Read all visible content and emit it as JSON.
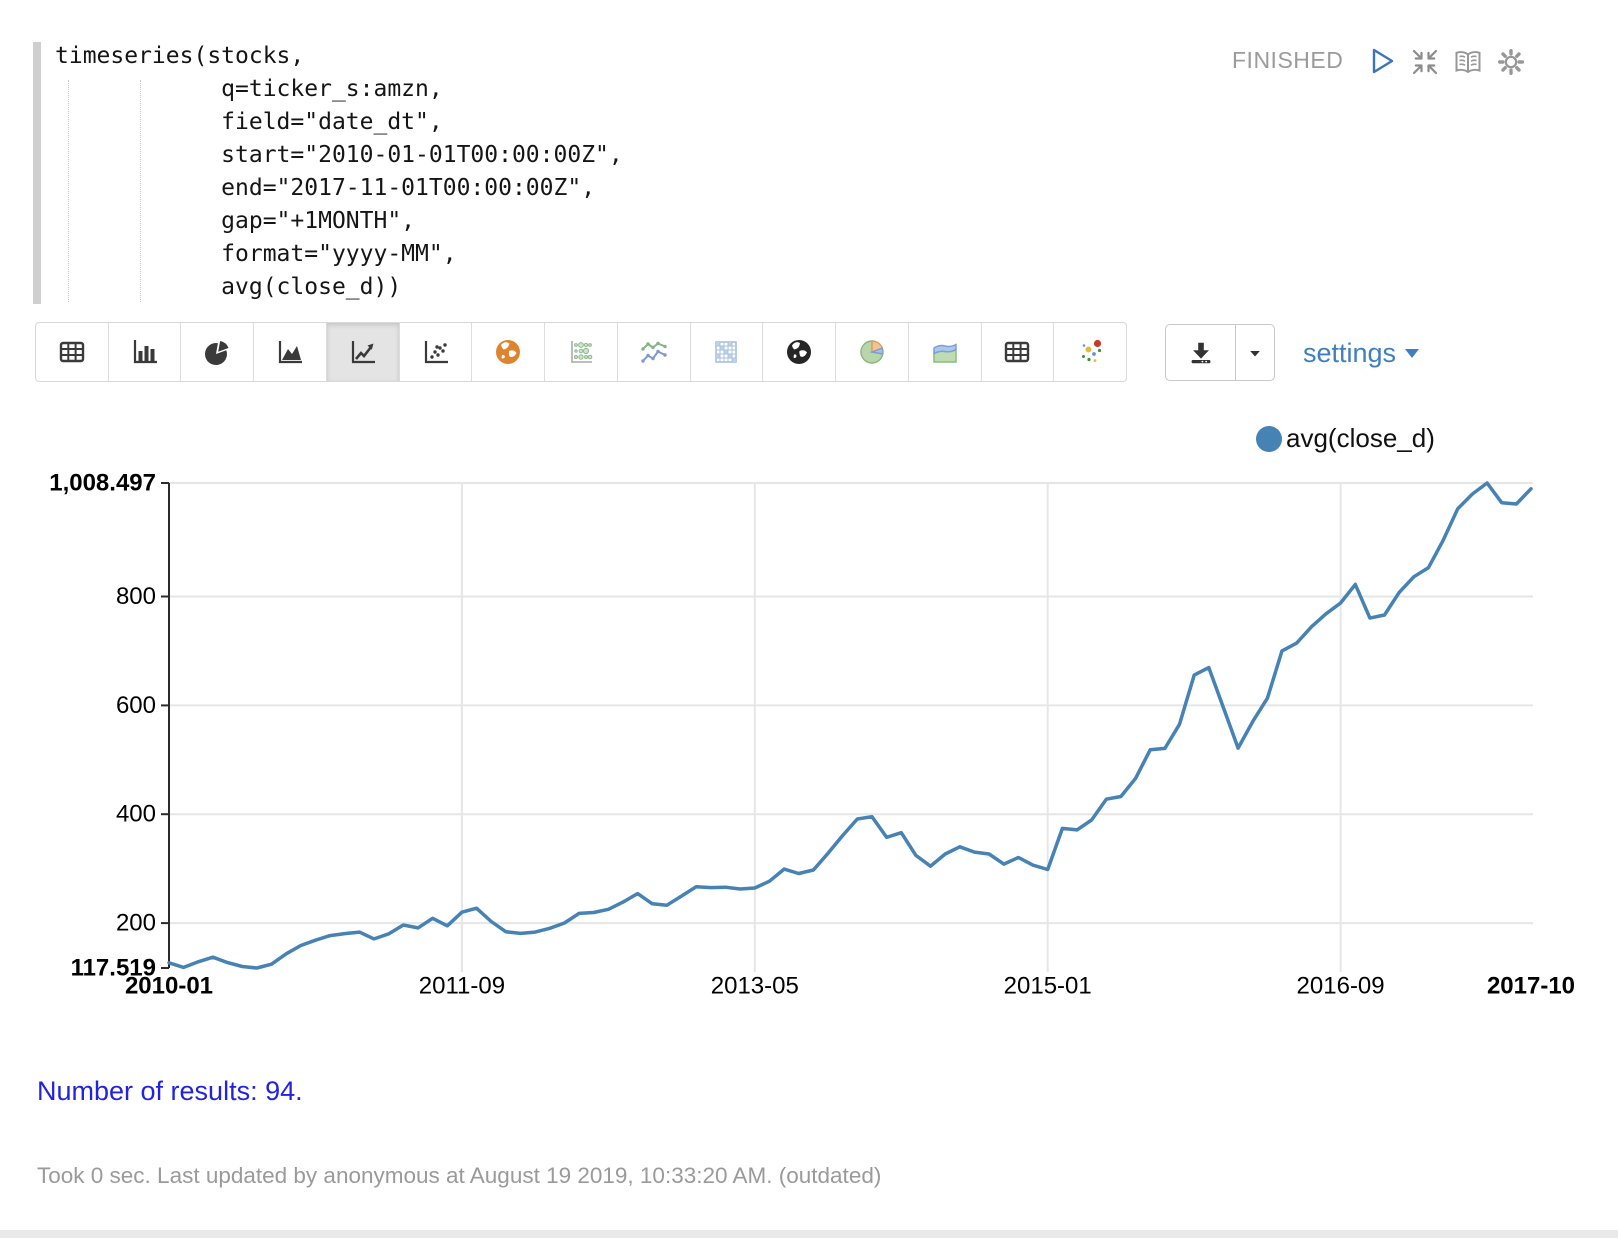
{
  "paragraph": {
    "status": "FINISHED",
    "code_lines": [
      "timeseries(stocks,",
      "            q=ticker_s:amzn,",
      "            field=\"date_dt\",",
      "            start=\"2010-01-01T00:00:00Z\",",
      "            end=\"2017-11-01T00:00:00Z\",",
      "            gap=\"+1MONTH\",",
      "            format=\"yyyy-MM\",",
      "            avg(close_d))"
    ],
    "controls": [
      {
        "name": "run",
        "icon": "play-icon"
      },
      {
        "name": "collapse-editor",
        "icon": "compress-icon"
      },
      {
        "name": "show-output",
        "icon": "book-icon"
      },
      {
        "name": "paragraph-settings",
        "icon": "gear-icon"
      }
    ]
  },
  "toolbar": {
    "chart_types": [
      {
        "name": "table",
        "selected": false
      },
      {
        "name": "bar-chart",
        "selected": false
      },
      {
        "name": "pie-chart",
        "selected": false
      },
      {
        "name": "area-chart",
        "selected": false
      },
      {
        "name": "line-chart",
        "selected": true
      },
      {
        "name": "scatter-plot",
        "selected": false
      },
      {
        "name": "map-globe-orange",
        "selected": false
      },
      {
        "name": "bubble-matrix",
        "selected": false
      },
      {
        "name": "multi-line-chart",
        "selected": false
      },
      {
        "name": "heatmap-grid",
        "selected": false
      },
      {
        "name": "globe-dark",
        "selected": false
      },
      {
        "name": "pie-colored",
        "selected": false
      },
      {
        "name": "area-colored",
        "selected": false
      },
      {
        "name": "globe-dark-2",
        "selected": false
      },
      {
        "name": "motion-bubbles",
        "selected": false
      }
    ],
    "download_tooltip": "download",
    "settings_label": "settings"
  },
  "legend": {
    "label": "avg(close_d)",
    "color": "#4682B4"
  },
  "chart_data": {
    "type": "line",
    "title": "",
    "x_field": "date_dt",
    "gap": "+1MONTH",
    "x": [
      "2010-01",
      "2010-02",
      "2010-03",
      "2010-04",
      "2010-05",
      "2010-06",
      "2010-07",
      "2010-08",
      "2010-09",
      "2010-10",
      "2010-11",
      "2010-12",
      "2011-01",
      "2011-02",
      "2011-03",
      "2011-04",
      "2011-05",
      "2011-06",
      "2011-07",
      "2011-08",
      "2011-09",
      "2011-10",
      "2011-11",
      "2011-12",
      "2012-01",
      "2012-02",
      "2012-03",
      "2012-04",
      "2012-05",
      "2012-06",
      "2012-07",
      "2012-08",
      "2012-09",
      "2012-10",
      "2012-11",
      "2012-12",
      "2013-01",
      "2013-02",
      "2013-03",
      "2013-04",
      "2013-05",
      "2013-06",
      "2013-07",
      "2013-08",
      "2013-09",
      "2013-10",
      "2013-11",
      "2013-12",
      "2014-01",
      "2014-02",
      "2014-03",
      "2014-04",
      "2014-05",
      "2014-06",
      "2014-07",
      "2014-08",
      "2014-09",
      "2014-10",
      "2014-11",
      "2014-12",
      "2015-01",
      "2015-02",
      "2015-03",
      "2015-04",
      "2015-05",
      "2015-06",
      "2015-07",
      "2015-08",
      "2015-09",
      "2015-10",
      "2015-11",
      "2015-12",
      "2016-01",
      "2016-02",
      "2016-03",
      "2016-04",
      "2016-05",
      "2016-06",
      "2016-07",
      "2016-08",
      "2016-09",
      "2016-10",
      "2016-11",
      "2016-12",
      "2017-01",
      "2017-02",
      "2017-03",
      "2017-04",
      "2017-05",
      "2017-06",
      "2017-07",
      "2017-08",
      "2017-09",
      "2017-10"
    ],
    "series": [
      {
        "name": "avg(close_d)",
        "color": "#4682B4",
        "values": [
          127.0,
          118.6,
          128.9,
          137.4,
          127.5,
          120.2,
          117.519,
          124.5,
          143.6,
          158.9,
          168.6,
          177.1,
          180.7,
          183.4,
          171.0,
          180.1,
          196.5,
          191.1,
          208.9,
          195.0,
          220.0,
          227.3,
          203.0,
          184.2,
          181.0,
          183.5,
          190.5,
          200.2,
          217.9,
          219.5,
          225.3,
          238.6,
          254.2,
          235.5,
          232.9,
          249.8,
          266.8,
          265.3,
          265.9,
          262.6,
          264.5,
          277.0,
          299.2,
          291.2,
          297.5,
          328.2,
          361.0,
          391.3,
          395.5,
          357.6,
          366.1,
          324.4,
          304.6,
          327.0,
          340.1,
          330.4,
          327.0,
          308.3,
          320.5,
          306.4,
          298.4,
          373.9,
          371.2,
          389.4,
          427.6,
          432.5,
          466.1,
          518.4,
          521.0,
          565.2,
          655.6,
          669.3,
          595.4,
          521.5,
          570.1,
          613.2,
          700.0,
          714.3,
          744.1,
          768.3,
          788.1,
          822.2,
          760.4,
          766.0,
          807.5,
          836.2,
          853.0,
          903.1,
          961.3,
          988.2,
          1008.497,
          972.3,
          969.9,
          997.8
        ]
      }
    ],
    "ylim": [
      117.519,
      1008.497
    ],
    "y_ticks": [
      {
        "label": "1,008.497",
        "value": 1008.497,
        "bold": true
      },
      {
        "label": "800",
        "value": 800,
        "bold": false
      },
      {
        "label": "600",
        "value": 600,
        "bold": false
      },
      {
        "label": "400",
        "value": 400,
        "bold": false
      },
      {
        "label": "200",
        "value": 200,
        "bold": false
      },
      {
        "label": "117.519",
        "value": 117.519,
        "bold": true
      }
    ],
    "x_ticks": [
      {
        "label": "2010-01",
        "index": 0,
        "bold": true
      },
      {
        "label": "2011-09",
        "index": 20,
        "bold": false
      },
      {
        "label": "2013-05",
        "index": 40,
        "bold": false
      },
      {
        "label": "2015-01",
        "index": 60,
        "bold": false
      },
      {
        "label": "2016-09",
        "index": 80,
        "bold": false
      },
      {
        "label": "2017-10",
        "index": 93,
        "bold": true
      }
    ],
    "grid": true,
    "legend_position": "top-right"
  },
  "footer": {
    "results_text": "Number of results: 94.",
    "status_line": "Took 0 sec. Last updated by anonymous at August 19 2019, 10:33:20 AM. (outdated)"
  },
  "colors": {
    "series_blue": "#4682B4",
    "settings_link_blue": "#3f7fbf",
    "results_blue": "#2222e0",
    "status_gray": "#9b9b9b",
    "grid_gray": "#e6e6e6"
  }
}
